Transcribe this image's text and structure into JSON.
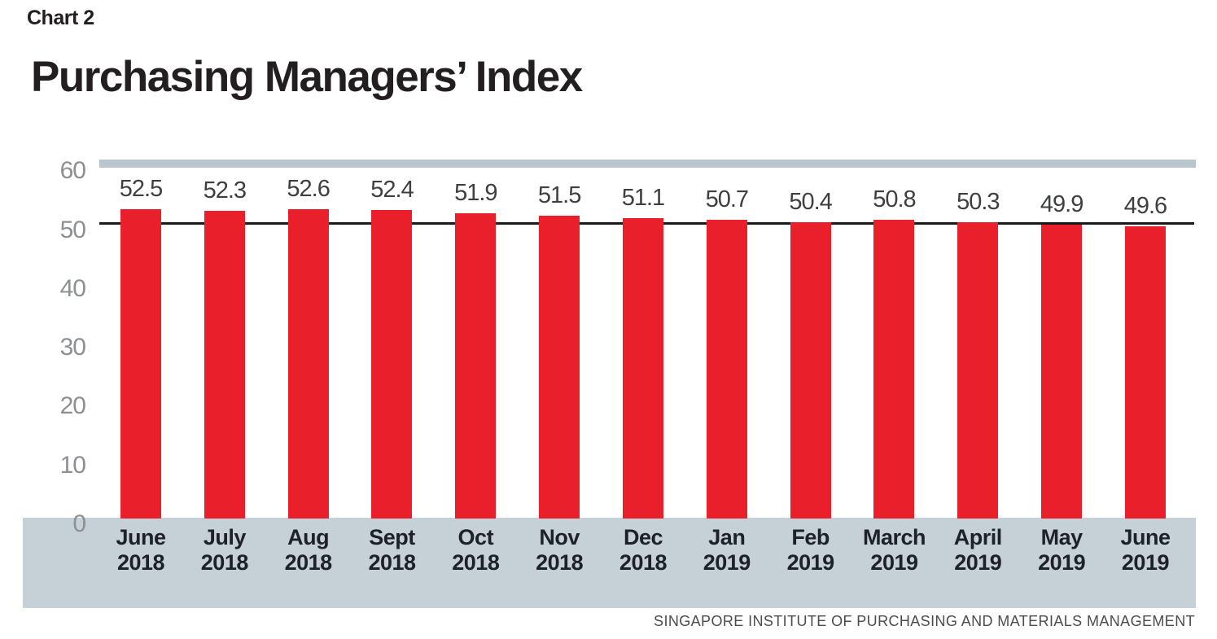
{
  "header": {
    "kicker": "Chart 2",
    "title": "Purchasing Managers’ Index"
  },
  "chart_data": {
    "type": "bar",
    "title": "Purchasing Managers’ Index",
    "categories": [
      {
        "month": "June",
        "year": "2018"
      },
      {
        "month": "July",
        "year": "2018"
      },
      {
        "month": "Aug",
        "year": "2018"
      },
      {
        "month": "Sept",
        "year": "2018"
      },
      {
        "month": "Oct",
        "year": "2018"
      },
      {
        "month": "Nov",
        "year": "2018"
      },
      {
        "month": "Dec",
        "year": "2018"
      },
      {
        "month": "Jan",
        "year": "2019"
      },
      {
        "month": "Feb",
        "year": "2019"
      },
      {
        "month": "March",
        "year": "2019"
      },
      {
        "month": "April",
        "year": "2019"
      },
      {
        "month": "May",
        "year": "2019"
      },
      {
        "month": "June",
        "year": "2019"
      }
    ],
    "values": [
      52.5,
      52.3,
      52.6,
      52.4,
      51.9,
      51.5,
      51.1,
      50.7,
      50.4,
      50.8,
      50.3,
      49.9,
      49.6
    ],
    "yticks": [
      60,
      50,
      40,
      30,
      20,
      10,
      0
    ],
    "ylim": [
      0,
      60
    ],
    "reference_line": 50,
    "grid": false,
    "legend": "none",
    "xlabel": "",
    "ylabel": ""
  },
  "colors": {
    "bar": "#e9202c",
    "top_band_60": "#b9c6ce",
    "bottom_band": "#c5d1d7",
    "reference_line": "#1a1a1a",
    "ytick_text": "#8d8f92",
    "value_text": "#3e3f41",
    "xtick_text": "#1e2127",
    "title_text": "#231f20",
    "source_text": "#4b4c4e"
  },
  "footer": {
    "source": "SINGAPORE INSTITUTE OF PURCHASING AND MATERIALS MANAGEMENT"
  }
}
